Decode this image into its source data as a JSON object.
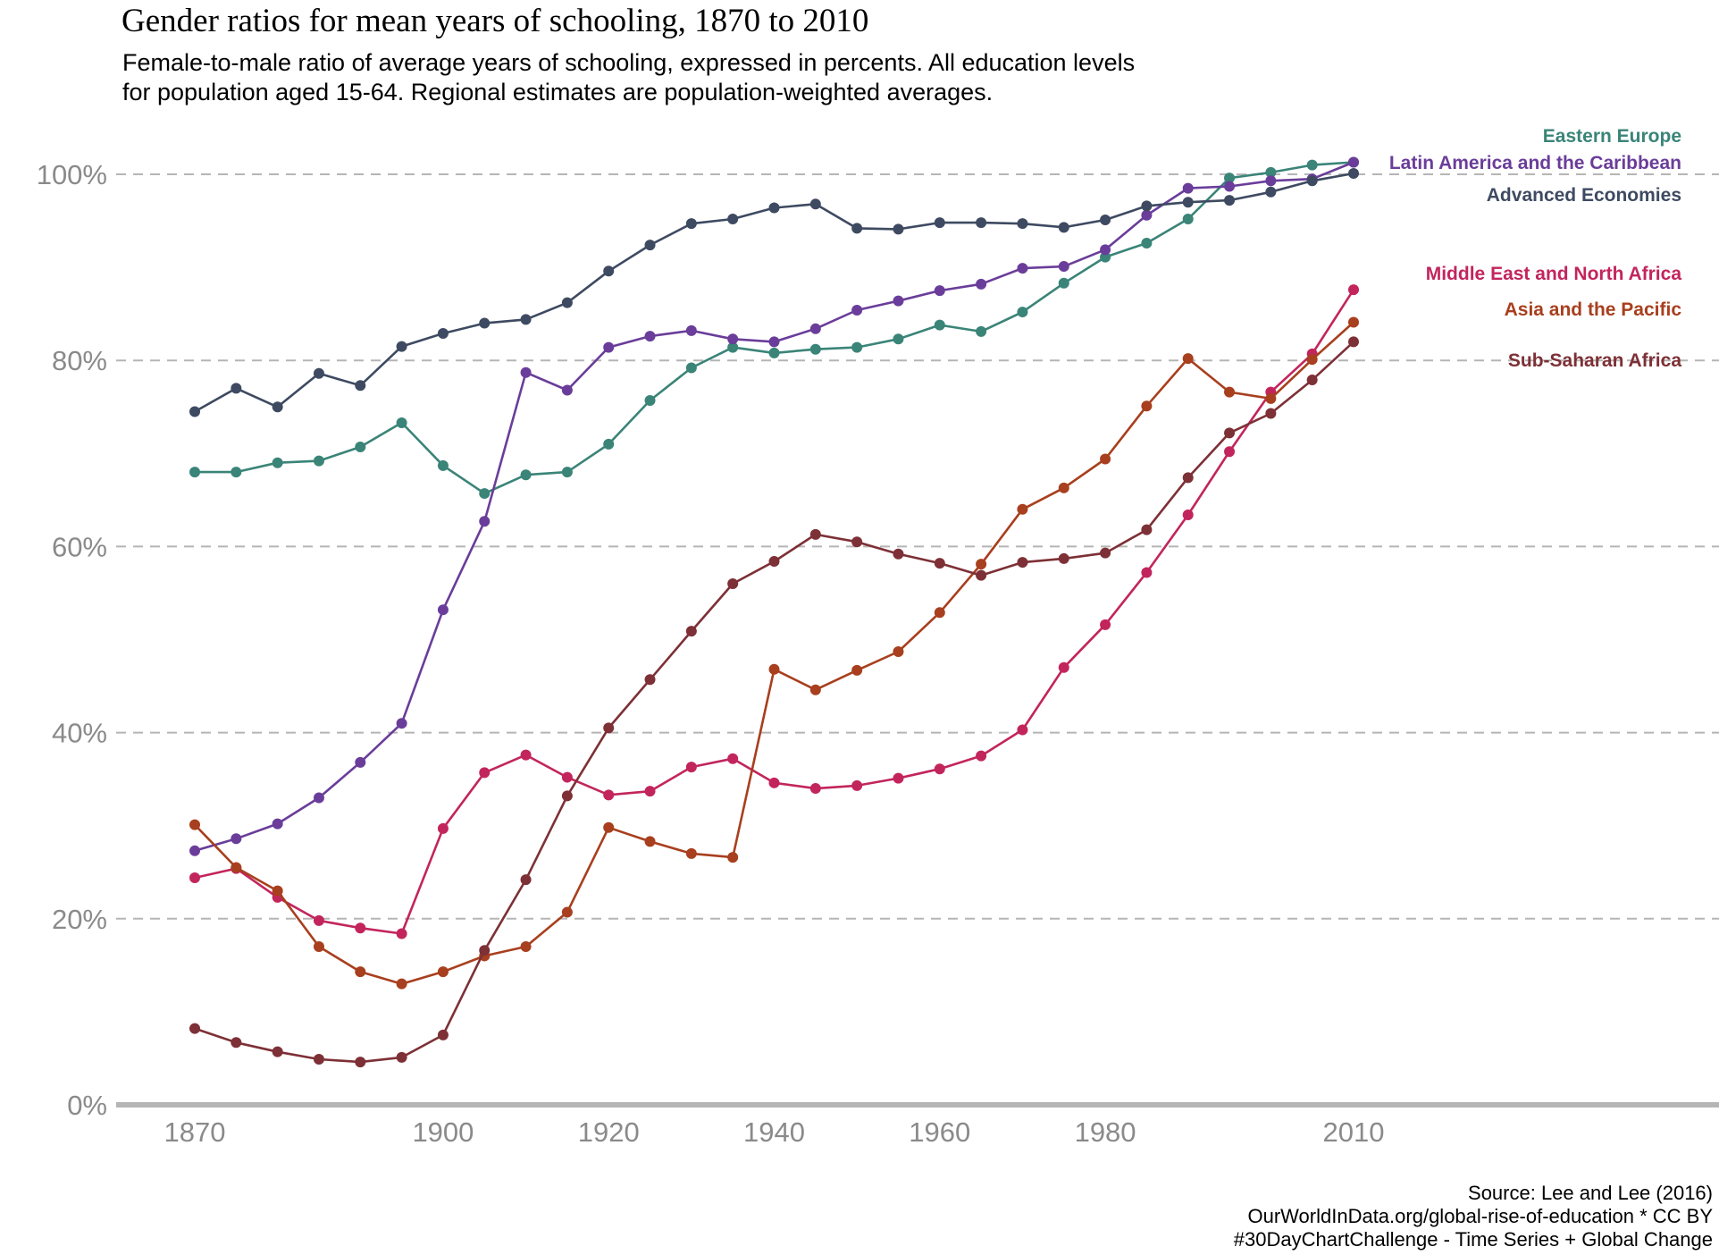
{
  "title": "Gender ratios for mean years of schooling, 1870 to 2010",
  "subtitle_lines": [
    "Female-to-male ratio of average years of schooling, expressed in percents. All education levels",
    "for population aged 15-64. Regional estimates are population-weighted averages."
  ],
  "footer_lines": [
    "Source: Lee and Lee (2016)",
    "OurWorldInData.org/global-rise-of-education * CC BY",
    "#30DayChartChallenge - Time Series + Global Change"
  ],
  "chart_data": {
    "type": "line",
    "xlim": [
      1861,
      2054
    ],
    "ylim": [
      0,
      100
    ],
    "x_ticks": [
      1870,
      1900,
      1920,
      1940,
      1960,
      1980,
      2010
    ],
    "x_tick_labels": [
      "1870",
      "1900",
      "1920",
      "1940",
      "1960",
      "1980",
      "2010"
    ],
    "y_ticks": [
      0,
      20,
      40,
      60,
      80,
      100
    ],
    "y_tick_labels": [
      "0%",
      "20%",
      "40%",
      "60%",
      "80%",
      "100%"
    ],
    "grid": "horizontal dashed",
    "legend": "direct labels at right",
    "x": [
      1870,
      1875,
      1880,
      1885,
      1890,
      1895,
      1900,
      1905,
      1910,
      1915,
      1920,
      1925,
      1930,
      1935,
      1940,
      1945,
      1950,
      1955,
      1960,
      1965,
      1970,
      1975,
      1980,
      1985,
      1990,
      1995,
      2000,
      2005,
      2010
    ],
    "series": [
      {
        "name": "Eastern Europe",
        "color": "#3a8478",
        "values": [
          68.0,
          68.0,
          69.0,
          69.2,
          70.7,
          73.3,
          68.7,
          65.7,
          67.7,
          68.0,
          71.0,
          75.7,
          79.2,
          81.4,
          80.8,
          81.2,
          81.4,
          82.3,
          83.8,
          83.1,
          85.2,
          88.3,
          91.1,
          92.6,
          95.2,
          99.6,
          100.2,
          101.0,
          101.3
        ]
      },
      {
        "name": "Latin America and the Caribbean",
        "color": "#6a3d9a",
        "values": [
          27.3,
          28.6,
          30.2,
          33.0,
          36.8,
          41.0,
          53.2,
          62.7,
          78.7,
          76.8,
          81.4,
          82.6,
          83.2,
          82.3,
          82.0,
          83.4,
          85.4,
          86.4,
          87.5,
          88.2,
          89.9,
          90.1,
          91.9,
          95.6,
          98.5,
          98.7,
          99.3,
          99.5,
          101.3
        ]
      },
      {
        "name": "Advanced Economies",
        "color": "#3e4a61",
        "values": [
          74.5,
          77.0,
          75.0,
          78.6,
          77.3,
          81.5,
          82.9,
          84.0,
          84.4,
          86.2,
          89.6,
          92.4,
          94.7,
          95.2,
          96.4,
          96.8,
          94.2,
          94.1,
          94.8,
          94.8,
          94.7,
          94.3,
          95.1,
          96.6,
          97.0,
          97.2,
          98.1,
          99.3,
          100.1
        ]
      },
      {
        "name": "Middle East and North Africa",
        "color": "#c2255c",
        "values": [
          24.4,
          25.4,
          22.3,
          19.8,
          19.0,
          18.4,
          29.7,
          35.7,
          37.6,
          35.2,
          33.3,
          33.7,
          36.3,
          37.2,
          34.6,
          34.0,
          34.3,
          35.1,
          36.1,
          37.5,
          40.3,
          47.0,
          51.6,
          57.2,
          63.4,
          70.2,
          76.6,
          80.7,
          87.6
        ]
      },
      {
        "name": "Asia and the Pacific",
        "color": "#a83f1e",
        "values": [
          30.1,
          25.5,
          23.0,
          17.0,
          14.3,
          13.0,
          14.3,
          16.0,
          17.0,
          20.7,
          29.8,
          28.3,
          27.0,
          26.6,
          46.8,
          44.6,
          46.7,
          48.7,
          52.9,
          58.1,
          64.0,
          66.3,
          69.4,
          75.1,
          80.2,
          76.6,
          75.9,
          80.1,
          84.1
        ]
      },
      {
        "name": "Sub-Saharan Africa",
        "color": "#7d3036",
        "values": [
          8.2,
          6.7,
          5.7,
          4.9,
          4.6,
          5.1,
          7.5,
          16.6,
          24.2,
          33.2,
          40.5,
          45.7,
          50.9,
          56.0,
          58.4,
          61.3,
          60.5,
          59.2,
          58.2,
          56.9,
          58.3,
          58.7,
          59.3,
          61.8,
          67.4,
          72.2,
          74.3,
          77.9,
          82.0
        ]
      }
    ]
  }
}
